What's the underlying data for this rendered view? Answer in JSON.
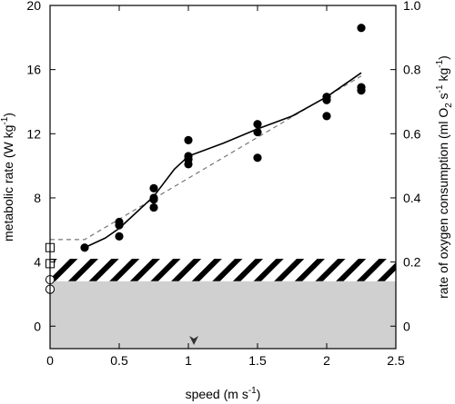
{
  "chart_data": {
    "type": "scatter",
    "xlabel": "speed (m s",
    "xlabel_sup": "-1",
    "xlabel_end": ")",
    "ylabel": "metabolic rate (W kg",
    "ylabel_sup": "-1",
    "ylabel_end": ")",
    "y2label_a": "rate of oxygen consumption (ml O",
    "y2label_sub": "2",
    "y2label_b": " s",
    "y2label_sup1": "-1",
    "y2label_c": " kg",
    "y2label_sup2": "-1",
    "y2label_d": ")",
    "xlim": [
      0,
      2.5
    ],
    "ylim": [
      -1.4,
      20
    ],
    "y2lim": [
      -0.07,
      1.0
    ],
    "xticks": [
      "0",
      "0.5",
      "1",
      "1.5",
      "2",
      "2.5"
    ],
    "yticks": [
      "0",
      "4",
      "8",
      "12",
      "16",
      "20"
    ],
    "y2ticks": [
      "0",
      "0.2",
      "0.4",
      "0.6",
      "0.8",
      "1.0"
    ],
    "grid": false,
    "series": [
      {
        "marker": "filled-circle",
        "x": [
          0.25,
          0.5,
          0.5,
          0.5,
          0.75,
          0.75,
          0.75,
          0.75,
          1.0,
          1.0,
          1.0,
          1.0,
          1.5,
          1.5,
          1.5,
          2.0,
          2.0,
          2.0,
          2.25,
          2.25,
          2.25
        ],
        "y": [
          4.9,
          5.6,
          6.3,
          6.5,
          7.4,
          7.9,
          8.0,
          8.6,
          10.1,
          10.4,
          10.6,
          11.6,
          10.5,
          12.1,
          12.6,
          13.1,
          14.1,
          14.3,
          14.7,
          14.9,
          18.6
        ]
      },
      {
        "marker": "open-square",
        "x": [
          0,
          0
        ],
        "y": [
          3.9,
          4.9
        ]
      },
      {
        "marker": "open-circle",
        "x": [
          0,
          0
        ],
        "y": [
          2.3,
          2.9
        ]
      }
    ],
    "fit_curve": {
      "style": "solid",
      "x": [
        0.25,
        0.4,
        0.5,
        0.6,
        0.75,
        0.9,
        1.0,
        1.25,
        1.5,
        1.75,
        2.0,
        2.25
      ],
      "y": [
        4.9,
        5.5,
        6.1,
        6.9,
        8.1,
        9.8,
        10.6,
        11.4,
        12.3,
        13.1,
        14.3,
        15.8
      ]
    },
    "fit_line": {
      "style": "dashed",
      "x": [
        0,
        0.25,
        2.25
      ],
      "y": [
        5.4,
        5.4,
        15.6
      ]
    },
    "bands": [
      {
        "style": "hatched",
        "y0": 2.8,
        "y1": 4.2
      },
      {
        "style": "gray-fill",
        "y0": -1.4,
        "y1": 2.8,
        "color": "#d0d0d0"
      }
    ],
    "marker_arrow": {
      "x": 1.04
    }
  }
}
